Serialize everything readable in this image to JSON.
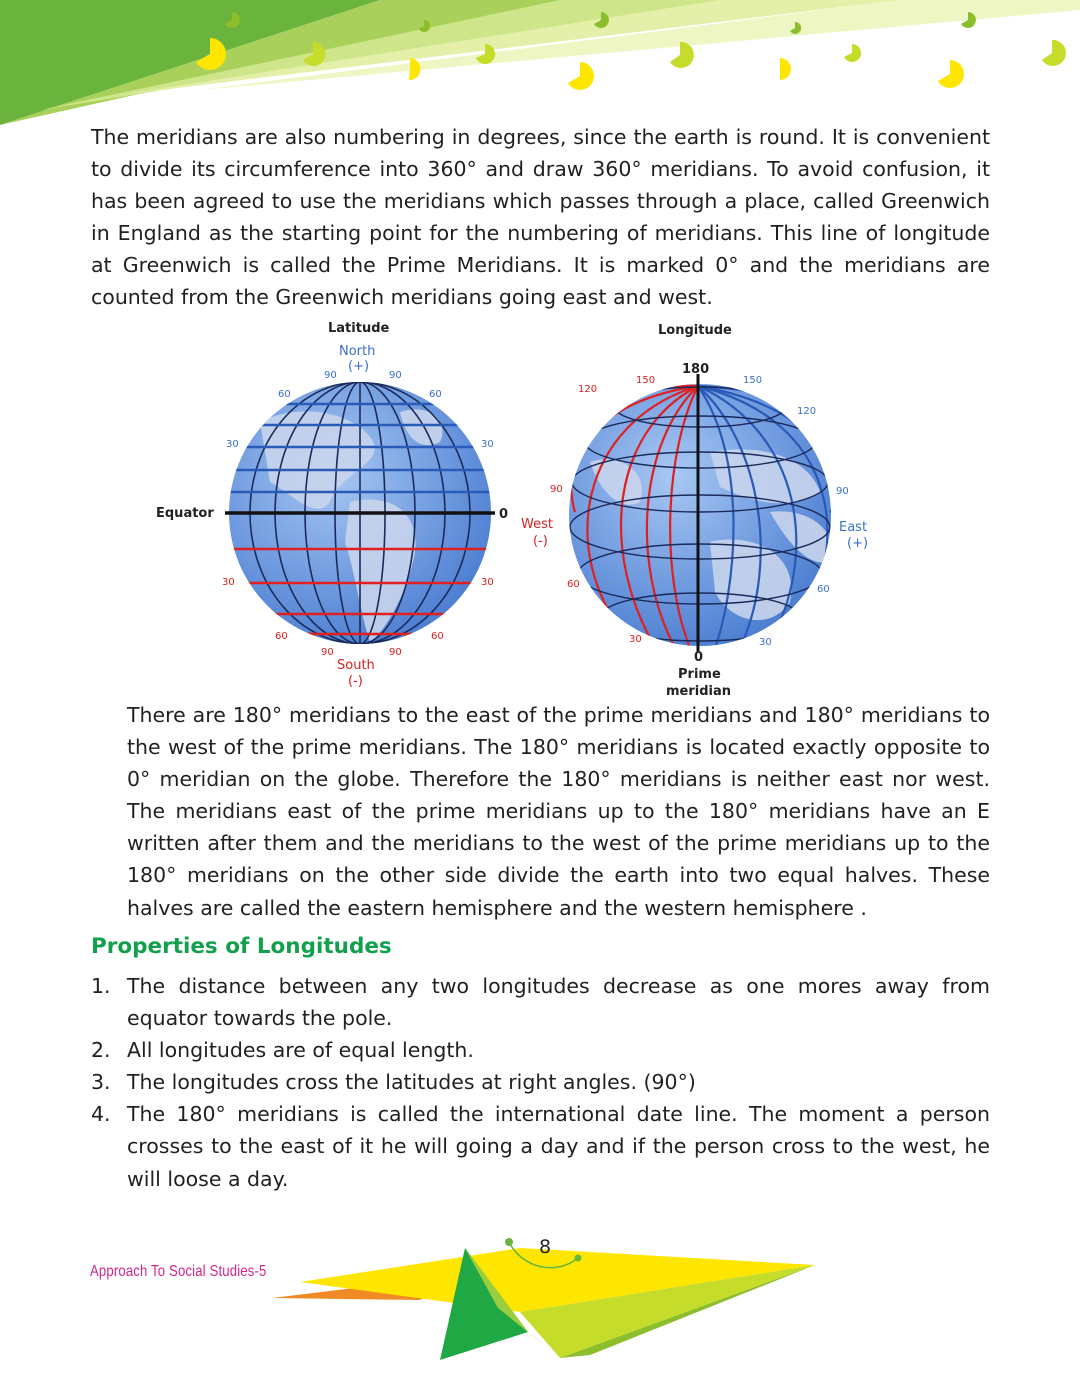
{
  "paragraph_1": "The meridians are also numbering in degrees, since the earth is round. It is convenient to divide its circumference into 360° and draw 360° meridians. To avoid confusion, it has been agreed to use the meridians which passes through a place, called Greenwich in England as the starting point for the numbering of meridians. This line of longitude at Greenwich is called the Prime Meridians. It is marked 0° and the meridians are counted from the Greenwich meridians going east and west.",
  "figure": {
    "latitude_globe": {
      "title": "Latitude",
      "north": "North",
      "north_sign": "(+)",
      "south": "South",
      "south_sign": "(-)",
      "equator": "Equator",
      "equator_value": "0",
      "ticks": [
        "90",
        "90",
        "60",
        "60",
        "30",
        "30",
        "30",
        "30",
        "60",
        "60",
        "90",
        "90"
      ]
    },
    "longitude_globe": {
      "title": "Longitude",
      "top_value": "180",
      "west": "West",
      "west_sign": "(-)",
      "east": "East",
      "east_sign": "(+)",
      "prime_value": "0",
      "prime_label_1": "Prime",
      "prime_label_2": "meridian",
      "ticks": [
        "150",
        "150",
        "120",
        "120",
        "90",
        "90",
        "60",
        "60",
        "30",
        "30"
      ]
    },
    "colors": {
      "globe": "#6b9fe0",
      "land": "#c8d4ec",
      "grid": "#1a2a5a",
      "south_lines": "#e02020",
      "north_lines": "#2a5ab8",
      "label_blue": "#3a6fd0",
      "label_red": "#d82020"
    }
  },
  "paragraph_2": "There are 180° meridians to the east of the prime meridians and 180° meridians to the west of the prime meridians. The 180° meridians is located exactly opposite to 0° meridian on the globe. Therefore the 180° meridians is neither east nor west. The meridians east of the prime meridians up to the 180° meridians have an E written after them and the meridians to the west of the prime meridians up to the 180° meridians on the other side divide the earth into two equal halves. These halves are called the eastern hemisphere and the western hemisphere .",
  "section_heading": "Properties of Longitudes",
  "properties": [
    {
      "num": "1.",
      "text": "The distance between any two longitudes decrease as one mores away from equator towards the pole."
    },
    {
      "num": "2.",
      "text": "All longitudes are of equal length."
    },
    {
      "num": "3.",
      "text": "The longitudes cross the latitudes at right angles. (90°)"
    },
    {
      "num": "4.",
      "text": "The 180° meridians is called the international date line. The moment a person crosses to the east of it he will going a day and if the person cross to the west, he will loose a day."
    }
  ],
  "footer": {
    "book_title": "Approach To Social Studies-5",
    "page_number": "8"
  },
  "theme": {
    "green": "#13a04d",
    "lime": "#9bcd3c",
    "yellow": "#ffe600",
    "pink": "#d6238a",
    "orange": "#f08a24"
  }
}
